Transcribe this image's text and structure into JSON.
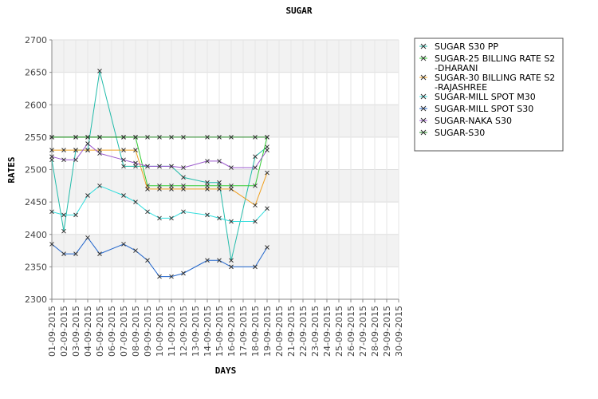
{
  "chart_data": {
    "type": "line",
    "title": "SUGAR",
    "xlabel": "DAYS",
    "ylabel": "RATES",
    "ylim": [
      2300,
      2700
    ],
    "yticks": [
      2300,
      2350,
      2400,
      2450,
      2500,
      2550,
      2600,
      2650,
      2700
    ],
    "grid": true,
    "legend_position": "right",
    "marker": "x",
    "categories": [
      "01-09-2015",
      "02-09-2015",
      "03-09-2015",
      "04-09-2015",
      "05-09-2015",
      "06-09-2015",
      "07-09-2015",
      "08-09-2015",
      "09-09-2015",
      "10-09-2015",
      "11-09-2015",
      "12-09-2015",
      "13-09-2015",
      "14-09-2015",
      "15-09-2015",
      "16-09-2015",
      "17-09-2015",
      "18-09-2015",
      "19-09-2015",
      "20-09-2015",
      "21-09-2015",
      "22-09-2015",
      "23-09-2015",
      "24-09-2015",
      "25-09-2015",
      "26-09-2015",
      "27-09-2015",
      "28-09-2015",
      "29-09-2015",
      "30-09-2015"
    ],
    "series": [
      {
        "name": "SUGAR S30 PP",
        "color": "#22bbaa",
        "values": [
          2515,
          2405,
          2530,
          2530,
          2652,
          null,
          2505,
          2505,
          2505,
          2505,
          2505,
          2488,
          null,
          2480,
          2480,
          2360,
          null,
          2520,
          2535,
          null,
          null,
          null,
          null,
          null,
          null,
          null,
          null,
          null,
          null,
          null
        ]
      },
      {
        "name": "SUGAR-25 BILLING RATE S2\n-DHARANI",
        "color": "#33cc33",
        "values": [
          2550,
          null,
          2550,
          2550,
          2550,
          null,
          2550,
          2550,
          2475,
          2475,
          2475,
          2475,
          null,
          2475,
          2475,
          2475,
          null,
          2475,
          2550,
          null,
          null,
          null,
          null,
          null,
          null,
          null,
          null,
          null,
          null,
          null
        ]
      },
      {
        "name": "SUGAR-30 BILLING RATE S2\n-RAJASHREE",
        "color": "#f0a020",
        "values": [
          2530,
          2530,
          2530,
          2530,
          2530,
          null,
          2530,
          2530,
          2470,
          2470,
          2470,
          2470,
          null,
          2470,
          2470,
          2470,
          null,
          2445,
          2495,
          null,
          null,
          null,
          null,
          null,
          null,
          null,
          null,
          null,
          null,
          null
        ]
      },
      {
        "name": "SUGAR-MILL SPOT M30",
        "color": "#33dddd",
        "values": [
          2435,
          2430,
          2430,
          2460,
          2475,
          null,
          2460,
          2450,
          2435,
          2425,
          2425,
          2435,
          null,
          2430,
          2425,
          2420,
          null,
          2420,
          2440,
          null,
          null,
          null,
          null,
          null,
          null,
          null,
          null,
          null,
          null,
          null
        ]
      },
      {
        "name": "SUGAR-MILL SPOT S30",
        "color": "#2266cc",
        "values": [
          2385,
          2370,
          2370,
          2395,
          2370,
          null,
          2385,
          2375,
          2360,
          2335,
          2335,
          2340,
          null,
          2360,
          2360,
          2350,
          null,
          2350,
          2380,
          null,
          null,
          null,
          null,
          null,
          null,
          null,
          null,
          null,
          null,
          null
        ]
      },
      {
        "name": "SUGAR-NAKA S30",
        "color": "#9955cc",
        "values": [
          2520,
          2515,
          2515,
          2540,
          2525,
          null,
          2515,
          2510,
          2505,
          2505,
          2505,
          2503,
          null,
          2513,
          2513,
          2503,
          null,
          2503,
          2530,
          null,
          null,
          null,
          null,
          null,
          null,
          null,
          null,
          null,
          null,
          null
        ]
      },
      {
        "name": "SUGAR-S30",
        "color": "#228822",
        "values": [
          2550,
          null,
          2550,
          2550,
          2550,
          null,
          2550,
          2550,
          2550,
          2550,
          2550,
          2550,
          null,
          2550,
          2550,
          2550,
          null,
          2550,
          2550,
          null,
          null,
          null,
          null,
          null,
          null,
          null,
          null,
          null,
          null,
          null
        ]
      }
    ]
  }
}
